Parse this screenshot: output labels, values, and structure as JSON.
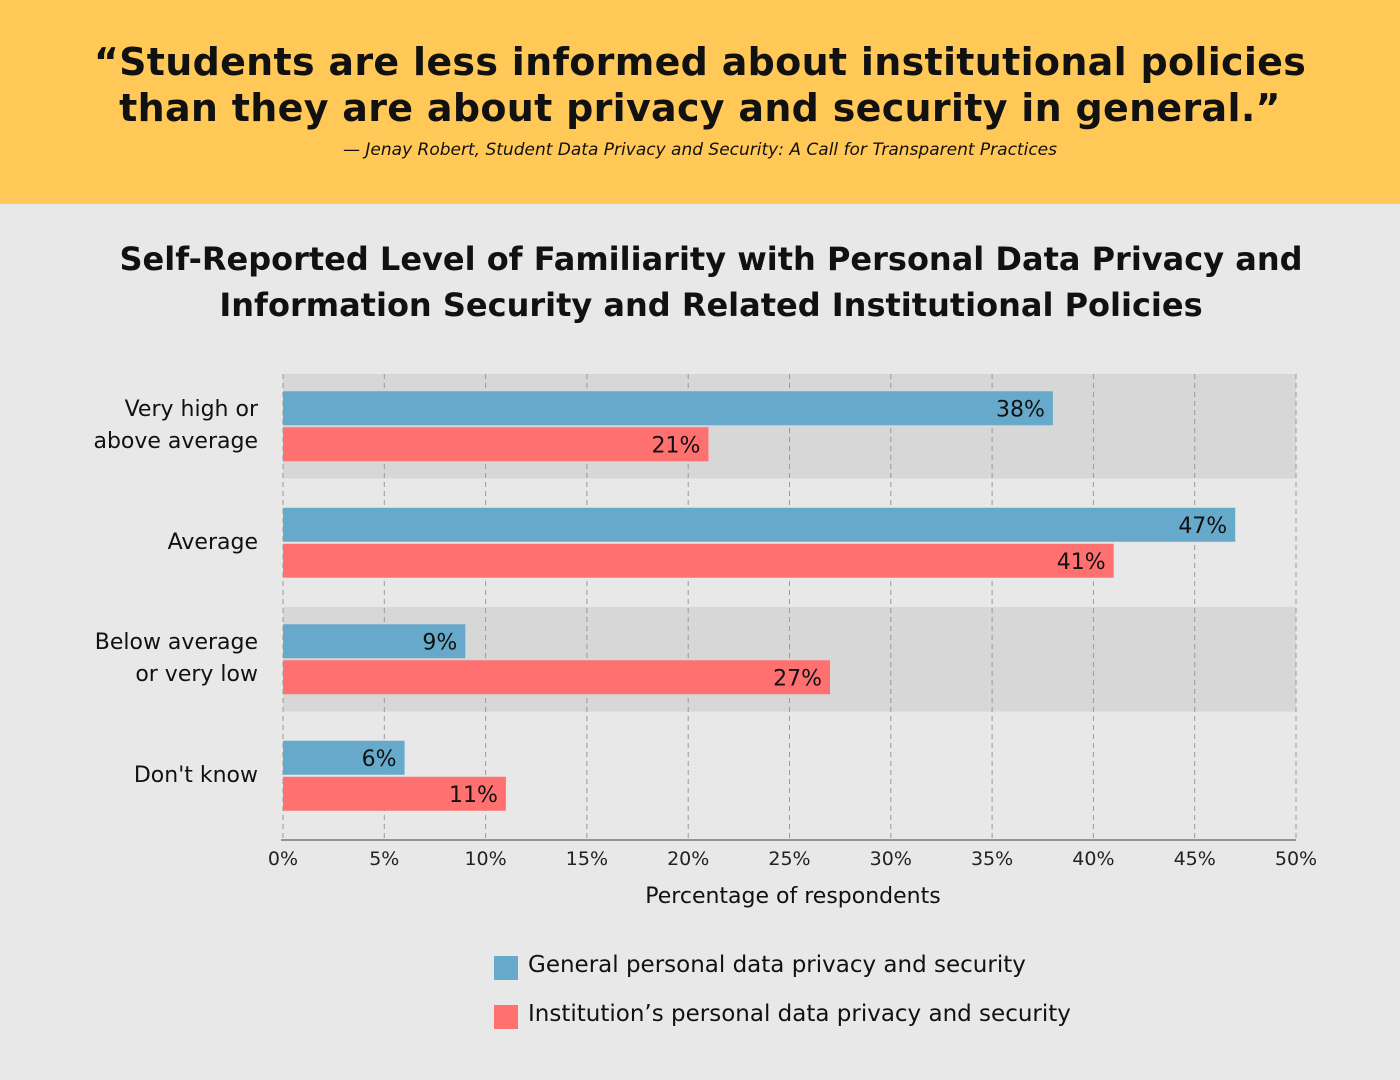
{
  "banner": {
    "quote_line1": "“Students are less informed about institutional policies",
    "quote_line2": "than they are about privacy and security in general.”",
    "attribution": "— Jenay Robert, Student Data Privacy and Security: A Call for Transparent Practices",
    "color": "#ffc857"
  },
  "chart_data": {
    "type": "bar",
    "orientation": "horizontal",
    "title_line1": "Self-Reported Level of Familiarity with Personal Data Privacy and",
    "title_line2": "Information Security and Related Institutional Policies",
    "categories": [
      {
        "lines": [
          "Very high or",
          "above average"
        ]
      },
      {
        "lines": [
          "Average"
        ]
      },
      {
        "lines": [
          "Below average",
          "or very low"
        ]
      },
      {
        "lines": [
          "Don't know"
        ]
      }
    ],
    "series": [
      {
        "name": "General personal data privacy and security",
        "color": "#66a9cb",
        "values": [
          38,
          47,
          9,
          6
        ],
        "labels": [
          "38%",
          "47%",
          "9%",
          "6%"
        ]
      },
      {
        "name": "Institution’s personal data privacy and security",
        "color": "#ff7070",
        "values": [
          21,
          41,
          27,
          11
        ],
        "labels": [
          "21%",
          "41%",
          "27%",
          "11%"
        ]
      }
    ],
    "xlabel": "Percentage of respondents",
    "xlim": [
      0,
      50
    ],
    "xticks": [
      "0%",
      "5%",
      "10%",
      "15%",
      "20%",
      "25%",
      "30%",
      "35%",
      "40%",
      "45%",
      "50%"
    ],
    "grid": true,
    "legend_position": "bottom"
  }
}
